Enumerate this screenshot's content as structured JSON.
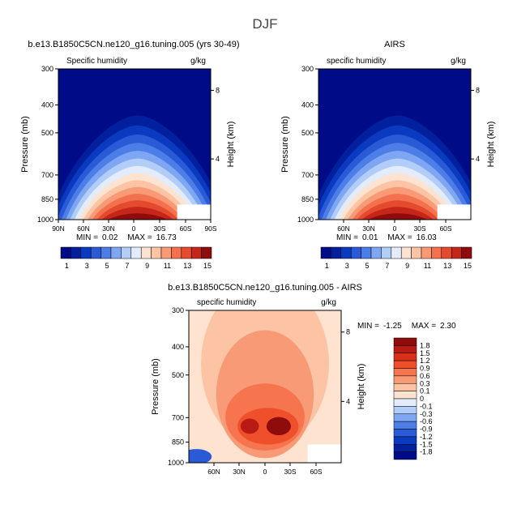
{
  "page_title": "DJF",
  "chart_data": [
    {
      "type": "heatmap",
      "panel_title": "b.e13.B1850C5CN.ne120_g16.tuning.005 (yrs 30-49)",
      "variable": "Specific humidity",
      "units": "g/kg",
      "ylabel": "Pressure (mb)",
      "right_label": "Height (km)",
      "pressure_ticks": [
        "300",
        "400",
        "500",
        "700",
        "850",
        "1000"
      ],
      "height_ticks": [
        "8",
        "4"
      ],
      "lat_ticks": [
        "90N",
        "60N",
        "30N",
        "0",
        "30S",
        "60S",
        "90S"
      ],
      "stats": {
        "min_label": "MIN =",
        "min": "0.02",
        "max_label": "MAX =",
        "max": "16.73"
      },
      "levels": [
        "1",
        "3",
        "5",
        "7",
        "9",
        "11",
        "13",
        "15"
      ],
      "colorscale": "blue-white-red",
      "peak_value": 16.73
    },
    {
      "type": "heatmap",
      "panel_title": "AIRS",
      "variable": "specific humidity",
      "units": "g/kg",
      "ylabel": "Pressure (mb)",
      "right_label": "Height (km)",
      "pressure_ticks": [
        "300",
        "400",
        "500",
        "700",
        "850",
        "1000"
      ],
      "height_ticks": [
        "8",
        "4"
      ],
      "lat_ticks": [
        "60N",
        "30N",
        "0",
        "30S",
        "60S"
      ],
      "stats": {
        "min_label": "MIN =",
        "min": "0.01",
        "max_label": "MAX =",
        "max": "16.03"
      },
      "levels": [
        "1",
        "3",
        "5",
        "7",
        "9",
        "11",
        "13",
        "15"
      ],
      "colorscale": "blue-white-red",
      "peak_value": 16.03
    },
    {
      "type": "heatmap",
      "panel_title": "b.e13.B1850C5CN.ne120_g16.tuning.005 - AIRS",
      "variable": "specific humidity",
      "units": "g/kg",
      "ylabel": "Pressure (mb)",
      "right_label": "Height (km)",
      "pressure_ticks": [
        "300",
        "400",
        "500",
        "700",
        "850",
        "1000"
      ],
      "height_ticks": [
        "8",
        "4"
      ],
      "lat_ticks": [
        "60N",
        "30N",
        "0",
        "30S",
        "60S"
      ],
      "stats": {
        "min_label": "MIN =",
        "min": "-1.25",
        "max_label": "MAX =",
        "max": "2.30"
      },
      "levels": [
        "1.8",
        "1.5",
        "1.2",
        "0.9",
        "0.6",
        "0.3",
        "0.1",
        "0",
        "-0.1",
        "-0.3",
        "-0.6",
        "-0.9",
        "-1.2",
        "-1.5",
        "-1.8"
      ],
      "colorscale": "diverging blue-white-red",
      "range": [
        -1.25,
        2.3
      ]
    }
  ],
  "colors": {
    "seq": [
      "#000c87",
      "#00209e",
      "#0a3ac0",
      "#2a5ad6",
      "#4d7ee8",
      "#7ea6f2",
      "#b2cdf7",
      "#e2ecfa",
      "#fde3d0",
      "#fcc4a4",
      "#f99a76",
      "#f3714e",
      "#e34a2e",
      "#c5261a",
      "#8e0c0c"
    ],
    "div": [
      "#8e0c0c",
      "#b81a14",
      "#d9301a",
      "#ef4f2a",
      "#f6744e",
      "#f99a76",
      "#fcc4a4",
      "#fde3d0",
      "#e2ecfa",
      "#b2cdf7",
      "#7ea6f2",
      "#4d7ee8",
      "#2a5ad6",
      "#0a3ac0",
      "#00209e",
      "#000c87"
    ]
  }
}
